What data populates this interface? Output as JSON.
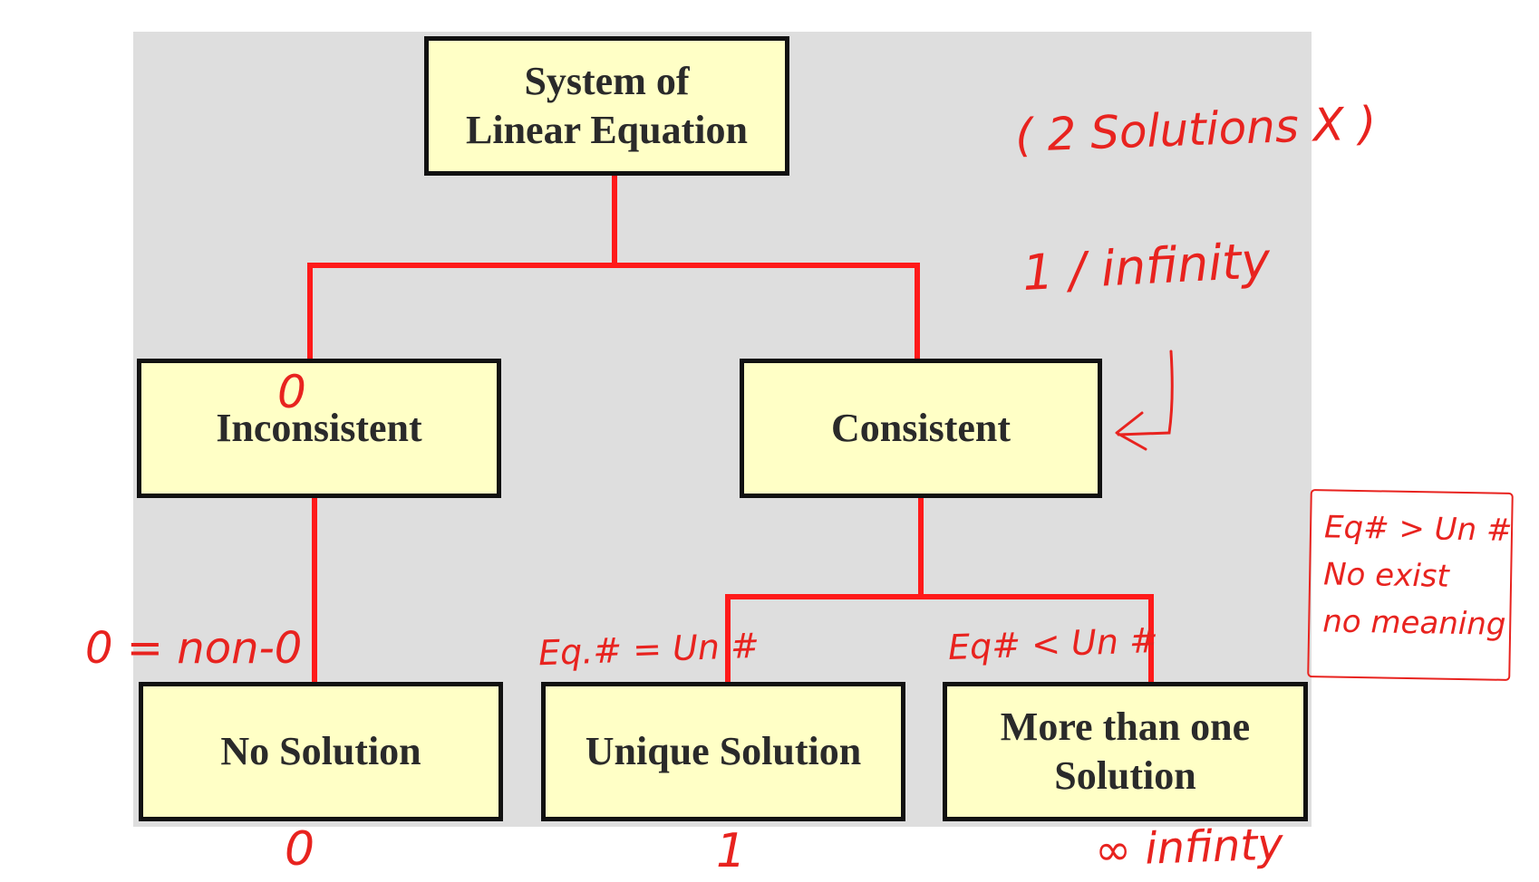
{
  "nodes": {
    "root": {
      "line1": "System of",
      "line2": "Linear Equation"
    },
    "inconsistent": "Inconsistent",
    "consistent": "Consistent",
    "no_solution": "No Solution",
    "unique_solution": "Unique Solution",
    "more_than_one": {
      "line1": "More than one",
      "line2": "Solution"
    }
  },
  "annotations": {
    "top_right": "( 2 Solutions X )",
    "one_or_infinity": "1 / infinity",
    "zero_inconsistent": "0",
    "zero_equals": "0 = non-0",
    "eq_equal": "Eq.# = Un #",
    "eq_less": "Eq# < Un #",
    "below_no_solution": "0",
    "below_unique": "1",
    "below_more": "∞ infinty",
    "note": {
      "line1": "Eq# > Un #",
      "line2": "No exist",
      "line3": "no meaning"
    }
  },
  "colors": {
    "connector": "#ff1a1a",
    "box_fill": "#ffffc6",
    "box_border": "#111111",
    "panel": "#dedede",
    "handwriting": "#e8231f"
  }
}
